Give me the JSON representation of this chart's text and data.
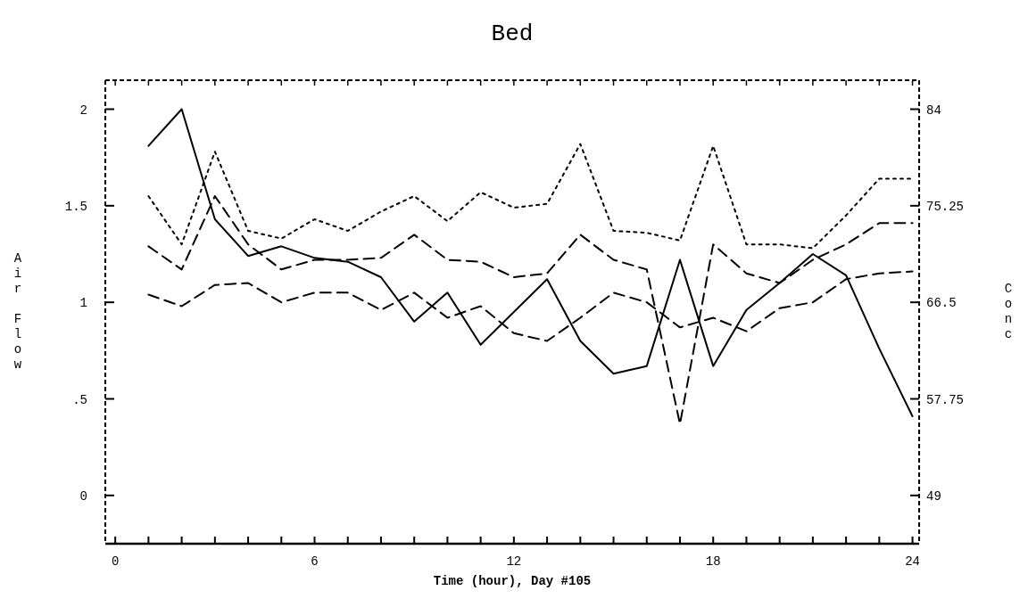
{
  "chart_data": {
    "type": "line",
    "title": "Bed",
    "xlabel": "Time (hour), Day #105",
    "ylabel": "Air Flow",
    "y2label": "Conc",
    "x": [
      1,
      2,
      3,
      4,
      5,
      6,
      7,
      8,
      9,
      10,
      11,
      12,
      13,
      14,
      15,
      16,
      17,
      18,
      19,
      20,
      21,
      22,
      23,
      24
    ],
    "series": [
      {
        "color": "#000000",
        "line_style": "solid",
        "values": [
          1.81,
          2.0,
          1.43,
          1.24,
          1.29,
          1.23,
          1.21,
          1.13,
          0.9,
          1.05,
          0.78,
          0.95,
          1.12,
          0.8,
          0.63,
          0.67,
          1.22,
          0.67,
          0.96,
          1.1,
          1.25,
          1.14,
          0.76,
          0.41
        ]
      },
      {
        "color": "#000000",
        "line_style": "dotted",
        "values": [
          1.55,
          1.3,
          1.78,
          1.37,
          1.33,
          1.43,
          1.37,
          1.47,
          1.55,
          1.42,
          1.57,
          1.49,
          1.51,
          1.82,
          1.37,
          1.36,
          1.32,
          1.81,
          1.3,
          1.3,
          1.28,
          1.45,
          1.64,
          1.64
        ]
      },
      {
        "color": "#000000",
        "line_style": "dashed",
        "values": [
          1.29,
          1.17,
          1.55,
          1.3,
          1.17,
          1.22,
          1.22,
          1.23,
          1.35,
          1.22,
          1.21,
          1.13,
          1.15,
          1.35,
          1.22,
          1.17,
          0.37,
          1.3,
          1.15,
          1.1,
          1.22,
          1.3,
          1.41,
          1.41
        ]
      },
      {
        "color": "#000000",
        "line_style": "dashed",
        "values": [
          1.04,
          0.98,
          1.09,
          1.1,
          1.0,
          1.05,
          1.05,
          0.96,
          1.05,
          0.92,
          0.98,
          0.84,
          0.8,
          0.92,
          1.05,
          1.0,
          0.87,
          0.92,
          0.85,
          0.97,
          1.0,
          1.12,
          1.15,
          1.16
        ]
      }
    ],
    "xlim": [
      -0.3,
      24.2
    ],
    "ylim": [
      -0.25,
      2.15
    ],
    "y2lim": [
      44.625,
      86.625
    ],
    "xticks": [
      0,
      {
        "value": 1,
        "label": null
      },
      {
        "value": 2,
        "label": null
      },
      {
        "value": 3,
        "label": null
      },
      {
        "value": 4,
        "label": null
      },
      {
        "value": 5,
        "label": null
      },
      6,
      {
        "value": 7,
        "label": null
      },
      {
        "value": 8,
        "label": null
      },
      {
        "value": 9,
        "label": null
      },
      {
        "value": 10,
        "label": null
      },
      {
        "value": 11,
        "label": null
      },
      12,
      {
        "value": 13,
        "label": null
      },
      {
        "value": 14,
        "label": null
      },
      {
        "value": 15,
        "label": null
      },
      {
        "value": 16,
        "label": null
      },
      {
        "value": 17,
        "label": null
      },
      18,
      {
        "value": 19,
        "label": null
      },
      {
        "value": 20,
        "label": null
      },
      {
        "value": 21,
        "label": null
      },
      {
        "value": 22,
        "label": null
      },
      {
        "value": 23,
        "label": null
      },
      24
    ],
    "yticks": [
      0,
      {
        "value": 0.5,
        "label": ".5"
      },
      1,
      1.5,
      2
    ],
    "y2ticks": [
      49,
      57.75,
      66.5,
      75.25,
      84
    ],
    "grid": false
  }
}
